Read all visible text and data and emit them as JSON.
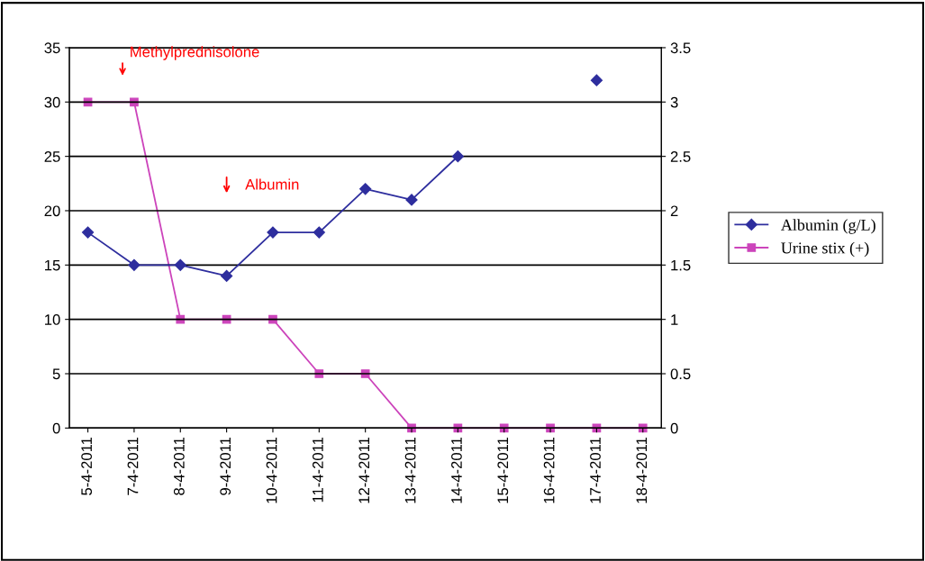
{
  "chart_data": {
    "type": "line",
    "categories": [
      "5-4-2011",
      "7-4-2011",
      "8-4-2011",
      "9-4-2011",
      "10-4-2011",
      "11-4-2011",
      "12-4-2011",
      "13-4-2011",
      "14-4-2011",
      "15-4-2011",
      "16-4-2011",
      "17-4-2011",
      "18-4-2011"
    ],
    "series": [
      {
        "name": "Albumin (g/L)",
        "color": "#2e2e9e",
        "marker": "diamond",
        "values": [
          18,
          15,
          15,
          14,
          18,
          18,
          22,
          21,
          25,
          null,
          null,
          32,
          null
        ]
      },
      {
        "name": "Urine stix (+)",
        "color": "#cc44bb",
        "marker": "square",
        "axis": "y2",
        "values": [
          3,
          3,
          1,
          1,
          1,
          0.5,
          0.5,
          0,
          0,
          0,
          0,
          0,
          0
        ]
      }
    ],
    "ylim": [
      0,
      35
    ],
    "yticks": [
      0,
      5,
      10,
      15,
      20,
      25,
      30,
      35
    ],
    "y2lim": [
      0,
      3.5
    ],
    "y2ticks": [
      0,
      0.5,
      1,
      1.5,
      2,
      2.5,
      3,
      3.5
    ],
    "grid": "y",
    "legend": "right",
    "annotations": [
      "Methylprednisolone",
      "Albumin"
    ]
  }
}
